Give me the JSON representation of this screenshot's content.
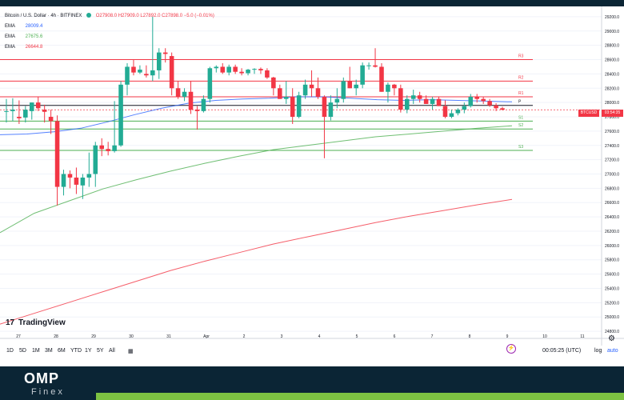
{
  "legend": {
    "symbol": "Bitcoin / U.S. Dollar · 4h · BITFINEX",
    "ohlc": "O27908.0 H27909.0 L27892.0 C27898.0 −5.0 (−0.01%)",
    "ema": [
      {
        "label": "EMA",
        "value": "28009.4",
        "color": "#2962ff"
      },
      {
        "label": "EMA",
        "value": "27675.6",
        "color": "#4caf50"
      },
      {
        "label": "EMA",
        "value": "26644.8",
        "color": "#f23645"
      }
    ]
  },
  "price_tag": "BTCUSD",
  "time_tag": "03:54:35",
  "brand": {
    "logo_text": "OMP",
    "sub_text": "Finex"
  },
  "tv_logo": {
    "mark": "17",
    "text": "TradingView"
  },
  "toolbar": {
    "ranges": [
      "1D",
      "5D",
      "1M",
      "3M",
      "6M",
      "YTD",
      "1Y",
      "5Y",
      "All"
    ],
    "clock": "00:05:25 (UTC)",
    "log": "log",
    "auto": "auto"
  },
  "chart_data": {
    "type": "candlestick",
    "title": "Bitcoin / U.S. Dollar · 4h · BITFINEX",
    "x_ticks": [
      "27",
      "28",
      "29",
      "30",
      "31",
      "Apr",
      "2",
      "3",
      "4",
      "5",
      "6",
      "7",
      "8",
      "9",
      "10",
      "11"
    ],
    "y_ticks": [
      29200,
      29000,
      28800,
      28600,
      28400,
      28200,
      28000,
      27800,
      27600,
      27400,
      27200,
      27000,
      26800,
      26600,
      26400,
      26200,
      26000,
      25800,
      25600,
      25400,
      25200,
      25000,
      24800
    ],
    "ylim": [
      24700,
      29300
    ],
    "candles": [
      {
        "o": 27880,
        "h": 28050,
        "l": 27720,
        "c": 27880
      },
      {
        "o": 27880,
        "h": 28060,
        "l": 27740,
        "c": 27900
      },
      {
        "o": 27800,
        "h": 28030,
        "l": 27700,
        "c": 27780
      },
      {
        "o": 27790,
        "h": 27950,
        "l": 27720,
        "c": 27900
      },
      {
        "o": 27880,
        "h": 28000,
        "l": 27760,
        "c": 28000
      },
      {
        "o": 28000,
        "h": 28080,
        "l": 27880,
        "c": 27920
      },
      {
        "o": 27900,
        "h": 27970,
        "l": 27720,
        "c": 27870
      },
      {
        "o": 27800,
        "h": 27900,
        "l": 27560,
        "c": 27740
      },
      {
        "o": 27740,
        "h": 27820,
        "l": 26560,
        "c": 26820
      },
      {
        "o": 26820,
        "h": 27060,
        "l": 26700,
        "c": 27000
      },
      {
        "o": 27000,
        "h": 27050,
        "l": 26800,
        "c": 26950
      },
      {
        "o": 26950,
        "h": 27090,
        "l": 26720,
        "c": 26850
      },
      {
        "o": 26840,
        "h": 27000,
        "l": 26650,
        "c": 26950
      },
      {
        "o": 26950,
        "h": 27300,
        "l": 26820,
        "c": 27000
      },
      {
        "o": 27000,
        "h": 27450,
        "l": 26820,
        "c": 27400
      },
      {
        "o": 27400,
        "h": 27500,
        "l": 27250,
        "c": 27350
      },
      {
        "o": 27350,
        "h": 27450,
        "l": 27260,
        "c": 27320
      },
      {
        "o": 27320,
        "h": 28020,
        "l": 27300,
        "c": 27400
      },
      {
        "o": 27400,
        "h": 28300,
        "l": 27380,
        "c": 28250
      },
      {
        "o": 28250,
        "h": 28550,
        "l": 28100,
        "c": 28500
      },
      {
        "o": 28500,
        "h": 28600,
        "l": 28380,
        "c": 28420
      },
      {
        "o": 28420,
        "h": 28520,
        "l": 28400,
        "c": 28460
      },
      {
        "o": 28400,
        "h": 28520,
        "l": 28350,
        "c": 28380
      },
      {
        "o": 28380,
        "h": 29200,
        "l": 28300,
        "c": 28450
      },
      {
        "o": 28450,
        "h": 28760,
        "l": 28330,
        "c": 28700
      },
      {
        "o": 28700,
        "h": 28760,
        "l": 28560,
        "c": 28680
      },
      {
        "o": 28650,
        "h": 28700,
        "l": 28100,
        "c": 28200
      },
      {
        "o": 28200,
        "h": 28300,
        "l": 28050,
        "c": 28080
      },
      {
        "o": 28080,
        "h": 28200,
        "l": 28020,
        "c": 28150
      },
      {
        "o": 28150,
        "h": 28300,
        "l": 27840,
        "c": 27900
      },
      {
        "o": 27900,
        "h": 27950,
        "l": 27620,
        "c": 27880
      },
      {
        "o": 27880,
        "h": 28100,
        "l": 27860,
        "c": 28050
      },
      {
        "o": 28050,
        "h": 28500,
        "l": 28000,
        "c": 28480
      },
      {
        "o": 28480,
        "h": 28520,
        "l": 28420,
        "c": 28500
      },
      {
        "o": 28500,
        "h": 28550,
        "l": 28400,
        "c": 28420
      },
      {
        "o": 28420,
        "h": 28530,
        "l": 28380,
        "c": 28500
      },
      {
        "o": 28500,
        "h": 28530,
        "l": 28400,
        "c": 28430
      },
      {
        "o": 28430,
        "h": 28480,
        "l": 28380,
        "c": 28410
      },
      {
        "o": 28410,
        "h": 28470,
        "l": 28380,
        "c": 28460
      },
      {
        "o": 28460,
        "h": 28480,
        "l": 28400,
        "c": 28470
      },
      {
        "o": 28470,
        "h": 28490,
        "l": 28400,
        "c": 28450
      },
      {
        "o": 28450,
        "h": 28480,
        "l": 28330,
        "c": 28350
      },
      {
        "o": 28350,
        "h": 28360,
        "l": 28100,
        "c": 28200
      },
      {
        "o": 28200,
        "h": 28250,
        "l": 28050,
        "c": 28050
      },
      {
        "o": 28050,
        "h": 28300,
        "l": 27980,
        "c": 28080
      },
      {
        "o": 28080,
        "h": 28200,
        "l": 27700,
        "c": 27800
      },
      {
        "o": 27800,
        "h": 28150,
        "l": 27780,
        "c": 28100
      },
      {
        "o": 28100,
        "h": 28320,
        "l": 28050,
        "c": 28250
      },
      {
        "o": 28250,
        "h": 28450,
        "l": 28080,
        "c": 28200
      },
      {
        "o": 28200,
        "h": 28350,
        "l": 28050,
        "c": 28080
      },
      {
        "o": 28080,
        "h": 28100,
        "l": 27220,
        "c": 27800
      },
      {
        "o": 27800,
        "h": 28100,
        "l": 27750,
        "c": 28000
      },
      {
        "o": 28000,
        "h": 28200,
        "l": 27920,
        "c": 28050
      },
      {
        "o": 28050,
        "h": 28350,
        "l": 28000,
        "c": 28300
      },
      {
        "o": 28300,
        "h": 28500,
        "l": 28200,
        "c": 28200
      },
      {
        "o": 28200,
        "h": 28320,
        "l": 28100,
        "c": 28250
      },
      {
        "o": 28250,
        "h": 28560,
        "l": 28200,
        "c": 28520
      },
      {
        "o": 28520,
        "h": 28560,
        "l": 28460,
        "c": 28520
      },
      {
        "o": 28520,
        "h": 28760,
        "l": 28490,
        "c": 28500
      },
      {
        "o": 28500,
        "h": 28550,
        "l": 28150,
        "c": 28150
      },
      {
        "o": 28150,
        "h": 28280,
        "l": 28000,
        "c": 28250
      },
      {
        "o": 28250,
        "h": 28260,
        "l": 28100,
        "c": 28200
      },
      {
        "o": 28200,
        "h": 28250,
        "l": 27860,
        "c": 27900
      },
      {
        "o": 27900,
        "h": 28100,
        "l": 27850,
        "c": 28050
      },
      {
        "o": 28050,
        "h": 28180,
        "l": 27980,
        "c": 28100
      },
      {
        "o": 28100,
        "h": 28150,
        "l": 28000,
        "c": 28050
      },
      {
        "o": 28050,
        "h": 28100,
        "l": 27980,
        "c": 27980
      },
      {
        "o": 27980,
        "h": 28080,
        "l": 27900,
        "c": 28050
      },
      {
        "o": 28050,
        "h": 28080,
        "l": 27950,
        "c": 27950
      },
      {
        "o": 27950,
        "h": 28030,
        "l": 27780,
        "c": 27800
      },
      {
        "o": 27800,
        "h": 27900,
        "l": 27780,
        "c": 27850
      },
      {
        "o": 27850,
        "h": 27920,
        "l": 27820,
        "c": 27900
      },
      {
        "o": 27900,
        "h": 28000,
        "l": 27850,
        "c": 27950
      },
      {
        "o": 27950,
        "h": 28120,
        "l": 27930,
        "c": 28080
      },
      {
        "o": 28080,
        "h": 28120,
        "l": 28000,
        "c": 28050
      },
      {
        "o": 28050,
        "h": 28080,
        "l": 27980,
        "c": 28020
      },
      {
        "o": 28020,
        "h": 28050,
        "l": 27940,
        "c": 27960
      },
      {
        "o": 27960,
        "h": 27990,
        "l": 27880,
        "c": 27920
      },
      {
        "o": 27920,
        "h": 27940,
        "l": 27890,
        "c": 27900
      }
    ],
    "ema_blue": [
      27550,
      27560,
      27590,
      27640,
      27730,
      27830,
      27920,
      27990,
      28030,
      28050,
      28060,
      28080,
      28080,
      28060,
      28040,
      28030,
      28040,
      28030,
      28020,
      28010
    ],
    "ema_green": [
      26180,
      26450,
      26620,
      26790,
      26920,
      27040,
      27150,
      27250,
      27340,
      27400,
      27460,
      27520,
      27560,
      27600,
      27640,
      27675
    ],
    "ema_red": [
      24900,
      25050,
      25200,
      25350,
      25500,
      25650,
      25780,
      25900,
      26020,
      26120,
      26220,
      26320,
      26410,
      26490,
      26570,
      26645
    ],
    "levels": [
      {
        "label": "R3",
        "value": 28600,
        "color": "#f23645"
      },
      {
        "label": "R2",
        "value": 28300,
        "color": "#f23645"
      },
      {
        "label": "R1",
        "value": 28080,
        "color": "#f23645"
      },
      {
        "label": "P",
        "value": 27960,
        "color": "#131722"
      },
      {
        "label": "S1",
        "value": 27740,
        "color": "#4caf50"
      },
      {
        "label": "S2",
        "value": 27630,
        "color": "#4caf50"
      },
      {
        "label": "S3",
        "value": 27330,
        "color": "#4caf50"
      }
    ],
    "last_price": 27898,
    "up_color": "#22ab94",
    "down_color": "#f23645"
  }
}
